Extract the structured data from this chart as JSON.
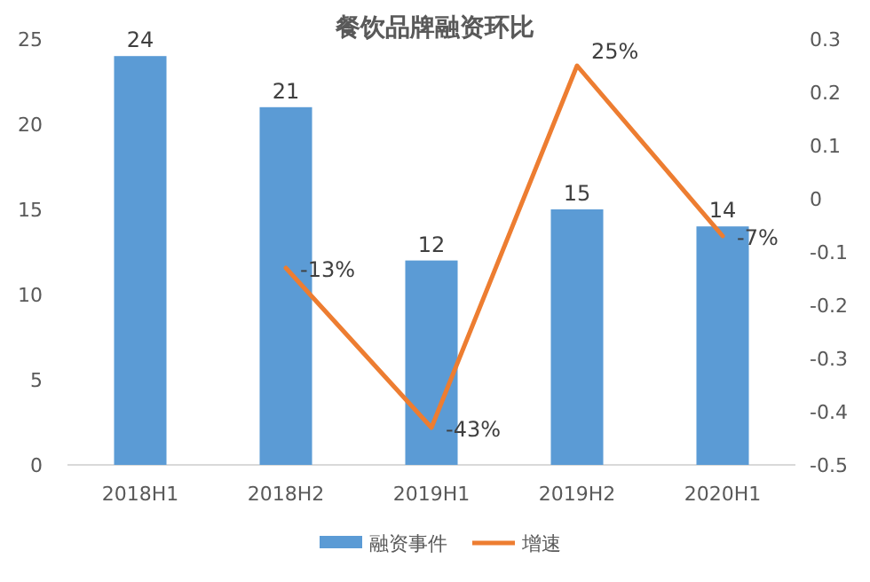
{
  "chart_data": {
    "type": "bar",
    "title": "餐饮品牌融资环比",
    "categories": [
      "2018H1",
      "2018H2",
      "2019H1",
      "2019H2",
      "2020H1"
    ],
    "series": [
      {
        "name": "融资事件",
        "color": "#5b9bd5",
        "values": [
          24,
          21,
          12,
          15,
          14
        ],
        "value_labels": [
          "24",
          "21",
          "12",
          "15",
          "14"
        ]
      },
      {
        "name": "增速",
        "type": "line",
        "axis": "y2",
        "color": "#ed7d31",
        "values": [
          null,
          -0.13,
          -0.43,
          0.25,
          -0.07
        ],
        "value_labels": [
          null,
          "-13%",
          "-43%",
          "25%",
          "-7%"
        ]
      }
    ],
    "ylim": [
      0,
      25
    ],
    "yticks": [
      0,
      5,
      10,
      15,
      20,
      25
    ],
    "y2lim": [
      -0.5,
      0.3
    ],
    "y2ticks": [
      0.3,
      0.2,
      0.1,
      0,
      -0.1,
      -0.2,
      -0.3,
      -0.4,
      -0.5
    ],
    "legend": "bottom"
  }
}
